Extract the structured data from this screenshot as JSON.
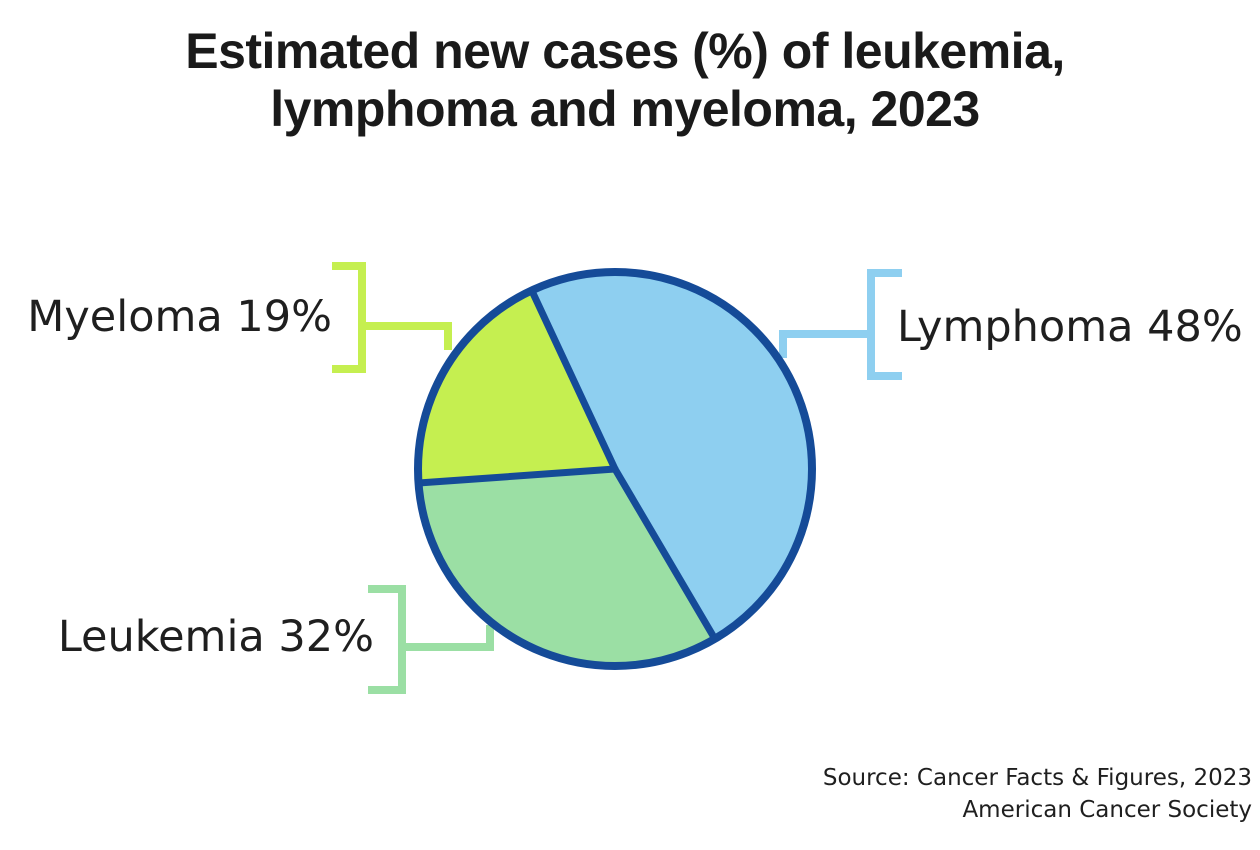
{
  "title": {
    "line1": "Estimated new cases (%) of leukemia,",
    "line2": "lymphoma and myeloma, 2023"
  },
  "source": {
    "line1": "Source: Cancer Facts & Figures, 2023",
    "line2": "American Cancer Society"
  },
  "chart_data": {
    "type": "pie",
    "title": "Estimated new cases (%) of leukemia, lymphoma and myeloma, 2023",
    "slices": [
      {
        "name": "Lymphoma",
        "value": 48,
        "label": "Lymphoma 48%",
        "color": "#8ecff0"
      },
      {
        "name": "Leukemia",
        "value": 32,
        "label": "Leukemia 32%",
        "color": "#9bdfa4"
      },
      {
        "name": "Myeloma",
        "value": 19,
        "label": "Myeloma 19%",
        "color": "#c5ef50"
      }
    ],
    "outline_color": "#154b98",
    "legend": "none",
    "data_labels": "outside with bracket connectors"
  }
}
